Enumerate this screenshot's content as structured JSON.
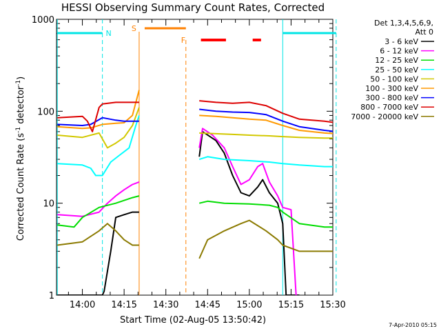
{
  "chart_data": {
    "type": "line",
    "title": "HESSI Observing Summary Count Rates, Corrected",
    "xlabel": "Start Time (02-Aug-05 13:50:42)",
    "ylabel_main": "Corrected Count Rate (s",
    "ylabel_sup1": "-1",
    "ylabel_mid": " detector",
    "ylabel_sup2": "-1",
    "ylabel_end": ")",
    "yscale": "log",
    "ylim": [
      1,
      1000
    ],
    "xlim": [
      "13:50:42",
      "15:30:00"
    ],
    "y_ticks": [
      {
        "value": 1,
        "label": "1"
      },
      {
        "value": 10,
        "label": "10"
      },
      {
        "value": 100,
        "label": "100"
      },
      {
        "value": 1000,
        "label": "1000"
      }
    ],
    "x_ticks": [
      {
        "value": 14.0,
        "label": "14:00"
      },
      {
        "value": 14.25,
        "label": "14:15"
      },
      {
        "value": 14.5,
        "label": "14:30"
      },
      {
        "value": 14.75,
        "label": "14:45"
      },
      {
        "value": 15.0,
        "label": "15:00"
      },
      {
        "value": 15.25,
        "label": "15:15"
      },
      {
        "value": 15.5,
        "label": "15:30"
      }
    ],
    "legend_header": [
      "Det 1,3,4,5,6,9,",
      "Att 0"
    ],
    "series": [
      {
        "name": "3 - 6 keV",
        "color": "#000000",
        "points": [
          [
            13.85,
            1
          ],
          [
            14.12,
            1
          ],
          [
            14.13,
            1.1
          ],
          [
            14.17,
            3
          ],
          [
            14.2,
            7
          ],
          [
            14.25,
            7.5
          ],
          [
            14.3,
            8
          ],
          [
            14.34,
            8
          ],
          "gap",
          [
            14.7,
            32
          ],
          [
            14.72,
            60
          ],
          [
            14.8,
            48
          ],
          [
            14.85,
            35
          ],
          [
            14.9,
            20
          ],
          [
            14.95,
            13
          ],
          [
            15.0,
            12
          ],
          [
            15.05,
            15
          ],
          [
            15.08,
            18
          ],
          [
            15.12,
            13
          ],
          [
            15.17,
            10
          ],
          [
            15.2,
            6
          ],
          [
            15.22,
            1
          ],
          [
            15.3,
            1
          ]
        ]
      },
      {
        "name": "6 - 12 keV",
        "color": "#ff00ff",
        "points": [
          [
            13.85,
            7.5
          ],
          [
            14.0,
            7.2
          ],
          [
            14.1,
            8
          ],
          [
            14.15,
            10
          ],
          [
            14.2,
            12
          ],
          [
            14.25,
            14
          ],
          [
            14.3,
            16
          ],
          [
            14.34,
            17
          ],
          "gap",
          [
            14.7,
            40
          ],
          [
            14.72,
            65
          ],
          [
            14.78,
            55
          ],
          [
            14.85,
            40
          ],
          [
            14.9,
            25
          ],
          [
            14.95,
            16
          ],
          [
            15.0,
            18
          ],
          [
            15.05,
            25
          ],
          [
            15.08,
            27
          ],
          [
            15.12,
            17
          ],
          [
            15.17,
            12
          ],
          [
            15.2,
            9
          ],
          [
            15.25,
            8.5
          ],
          [
            15.28,
            1
          ]
        ]
      },
      {
        "name": "12 - 25 keV",
        "color": "#00dd00",
        "points": [
          [
            13.85,
            5.8
          ],
          [
            13.95,
            5.5
          ],
          [
            14.0,
            7
          ],
          [
            14.1,
            9
          ],
          [
            14.2,
            10
          ],
          [
            14.3,
            11.5
          ],
          [
            14.34,
            12
          ],
          "gap",
          [
            14.7,
            10
          ],
          [
            14.75,
            10.5
          ],
          [
            14.85,
            10
          ],
          [
            15.0,
            9.8
          ],
          [
            15.12,
            9.5
          ],
          [
            15.17,
            9
          ],
          [
            15.2,
            8
          ],
          [
            15.3,
            6
          ],
          [
            15.45,
            5.5
          ],
          [
            15.52,
            5.5
          ]
        ]
      },
      {
        "name": "25 - 50 keV",
        "color": "#00ffff",
        "points": [
          [
            13.85,
            27
          ],
          [
            14.0,
            26
          ],
          [
            14.05,
            24
          ],
          [
            14.08,
            20
          ],
          [
            14.12,
            20
          ],
          [
            14.17,
            28
          ],
          [
            14.22,
            33
          ],
          [
            14.28,
            40
          ],
          [
            14.32,
            70
          ],
          [
            14.34,
            90
          ],
          "gap",
          [
            14.7,
            30
          ],
          [
            14.75,
            32
          ],
          [
            14.85,
            30
          ],
          [
            15.0,
            29
          ],
          [
            15.12,
            28
          ],
          [
            15.2,
            27
          ],
          [
            15.3,
            26
          ],
          [
            15.45,
            25
          ],
          [
            15.52,
            25
          ]
        ]
      },
      {
        "name": "50 - 100 keV",
        "color": "#d2c800",
        "points": [
          [
            13.85,
            55
          ],
          [
            14.0,
            52
          ],
          [
            14.05,
            55
          ],
          [
            14.1,
            58
          ],
          [
            14.15,
            40
          ],
          [
            14.2,
            45
          ],
          [
            14.25,
            52
          ],
          [
            14.3,
            70
          ],
          [
            14.34,
            110
          ],
          "gap",
          [
            14.7,
            58
          ],
          [
            14.8,
            57
          ],
          [
            14.9,
            56
          ],
          [
            15.0,
            55
          ],
          [
            15.12,
            54
          ],
          [
            15.2,
            53
          ],
          [
            15.3,
            52
          ],
          [
            15.45,
            51
          ],
          [
            15.52,
            51
          ]
        ]
      },
      {
        "name": "100 - 300 keV",
        "color": "#ff9900",
        "points": [
          [
            13.85,
            68
          ],
          [
            14.0,
            65
          ],
          [
            14.05,
            66
          ],
          [
            14.12,
            72
          ],
          [
            14.2,
            74
          ],
          [
            14.25,
            75
          ],
          [
            14.3,
            90
          ],
          [
            14.34,
            170
          ],
          "gap",
          [
            14.7,
            90
          ],
          [
            14.8,
            88
          ],
          [
            14.9,
            85
          ],
          [
            15.0,
            82
          ],
          [
            15.1,
            80
          ],
          [
            15.2,
            70
          ],
          [
            15.3,
            62
          ],
          [
            15.45,
            58
          ],
          [
            15.52,
            57
          ]
        ]
      },
      {
        "name": "300 - 800 keV",
        "color": "#0000ff",
        "points": [
          [
            13.85,
            72
          ],
          [
            14.0,
            70
          ],
          [
            14.05,
            72
          ],
          [
            14.12,
            85
          ],
          [
            14.2,
            80
          ],
          [
            14.25,
            78
          ],
          [
            14.3,
            78
          ],
          [
            14.34,
            78
          ],
          "gap",
          [
            14.7,
            105
          ],
          [
            14.8,
            100
          ],
          [
            14.9,
            98
          ],
          [
            15.0,
            97
          ],
          [
            15.1,
            92
          ],
          [
            15.2,
            78
          ],
          [
            15.3,
            68
          ],
          [
            15.45,
            62
          ],
          [
            15.52,
            60
          ]
        ]
      },
      {
        "name": "800 - 7000 keV",
        "color": "#dd0000",
        "points": [
          [
            13.85,
            85
          ],
          [
            14.0,
            88
          ],
          [
            14.03,
            78
          ],
          [
            14.06,
            60
          ],
          [
            14.1,
            110
          ],
          [
            14.12,
            120
          ],
          [
            14.2,
            125
          ],
          [
            14.34,
            125
          ],
          "gap",
          [
            14.7,
            130
          ],
          [
            14.8,
            125
          ],
          [
            14.9,
            122
          ],
          [
            15.0,
            125
          ],
          [
            15.1,
            115
          ],
          [
            15.2,
            95
          ],
          [
            15.3,
            82
          ],
          [
            15.45,
            78
          ],
          [
            15.52,
            75
          ]
        ]
      },
      {
        "name": "7000 - 20000 keV",
        "color": "#8b7a00",
        "points": [
          [
            13.85,
            3.5
          ],
          [
            14.0,
            3.8
          ],
          [
            14.1,
            5
          ],
          [
            14.15,
            6
          ],
          [
            14.2,
            5
          ],
          [
            14.25,
            4
          ],
          [
            14.3,
            3.5
          ],
          [
            14.34,
            3.5
          ],
          "gap",
          [
            14.7,
            2.5
          ],
          [
            14.75,
            4
          ],
          [
            14.85,
            5
          ],
          [
            14.95,
            6
          ],
          [
            15.0,
            6.5
          ],
          [
            15.1,
            5
          ],
          [
            15.17,
            4
          ],
          [
            15.2,
            3.5
          ],
          [
            15.3,
            3
          ],
          [
            15.45,
            3
          ],
          [
            15.52,
            3
          ]
        ]
      }
    ],
    "annotations": {
      "night_color": "#00e5e5",
      "night_bars": [
        [
          13.85,
          14.12
        ],
        [
          15.2,
          15.52
        ]
      ],
      "night_label": "N",
      "night_label_x": 14.14,
      "saa_color": "#ff8000",
      "saa_bar": [
        14.34,
        14.62
      ],
      "saa_start_label": "S",
      "saa_end_label": "F",
      "flare_color": "#ff0000",
      "flare_bars": [
        [
          14.71,
          14.86
        ],
        [
          15.02,
          15.07
        ]
      ]
    },
    "grid": false,
    "legend_placement": "right"
  },
  "footer": {
    "date": "7-Apr-2010 05:15"
  }
}
